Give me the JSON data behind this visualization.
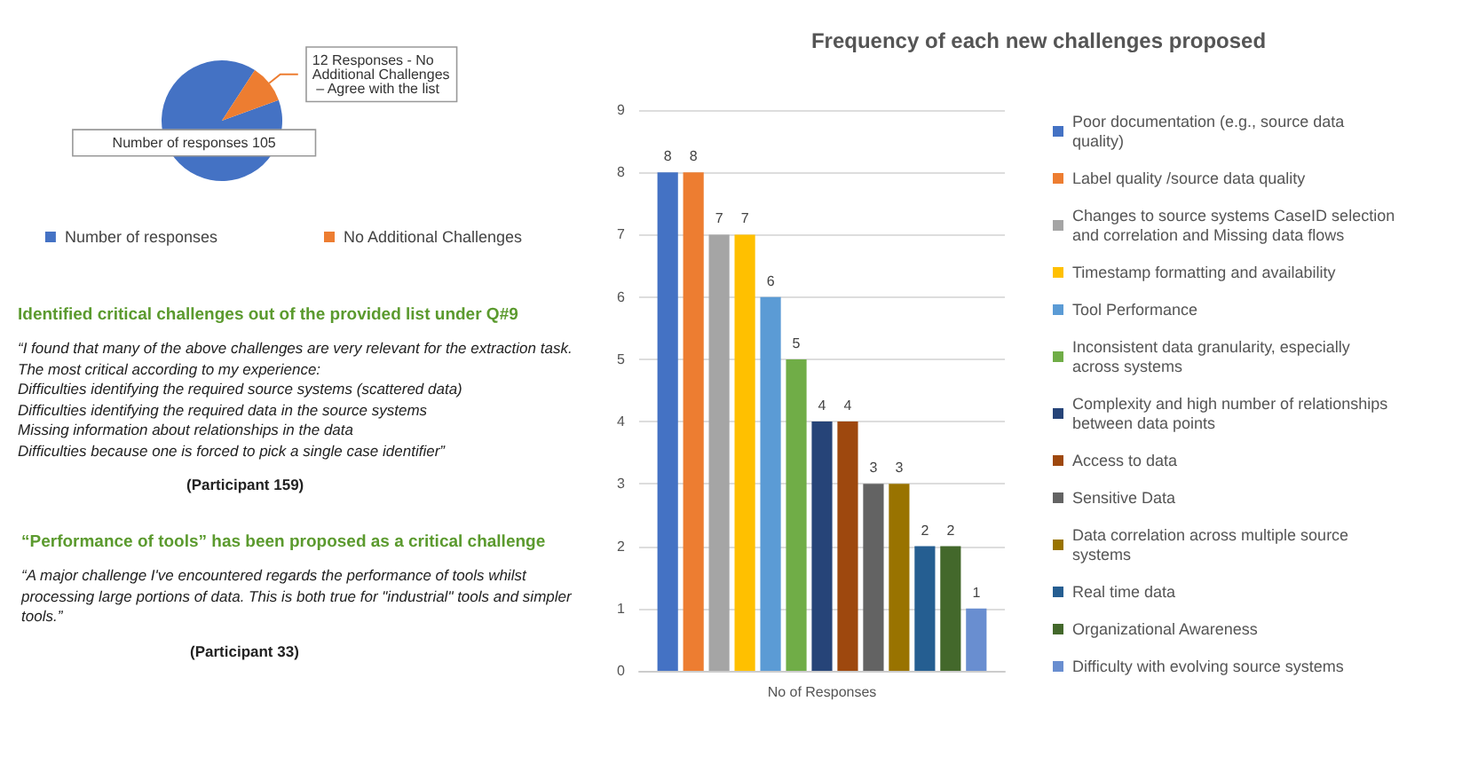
{
  "chart_data": [
    {
      "type": "pie",
      "categories": [
        "Number of responses",
        "No Additional Challenges"
      ],
      "values": [
        105,
        12
      ],
      "colors": [
        "#4472c4",
        "#ed7d31"
      ],
      "value_labels": [
        "Number of responses 105",
        "12 Responses - No Additional Challenges – Agree with the list"
      ],
      "legend": "bottom"
    },
    {
      "type": "other",
      "title": "Identified critical challenges out of the provided list under Q#9",
      "annotations": [
        "“I found that many of the above challenges are very relevant for the extraction task.",
        "The most critical according to my experience:",
        "Difficulties identifying the required source systems (scattered data)",
        "Difficulties identifying the required data in the source systems",
        "Missing information about relationships in the data",
        "Difficulties because one is forced to pick a single case identifier”",
        "(Participant 159)"
      ]
    },
    {
      "type": "other",
      "title": "“Performance of tools” has been proposed as a critical challenge",
      "annotations": [
        "“A major challenge I've encountered regards the performance of tools whilst processing large portions of data. This is both true for \"industrial\" tools and simpler tools.”",
        "(Participant 33)"
      ]
    },
    {
      "type": "bar",
      "title": "Frequency of each new challenges proposed",
      "categories": [
        "No of Responses"
      ],
      "series": [
        {
          "name": "Poor documentation (e.g., source data quality)",
          "color": "#4472c4",
          "values": [
            8
          ]
        },
        {
          "name": "Label quality /source data quality",
          "color": "#ed7d31",
          "values": [
            8
          ]
        },
        {
          "name": "Changes to source systems CaseID selection and correlation and Missing data flows",
          "color": "#a5a5a5",
          "values": [
            7
          ]
        },
        {
          "name": "Timestamp formatting and availability",
          "color": "#ffc000",
          "values": [
            7
          ]
        },
        {
          "name": "Tool Performance",
          "color": "#5b9bd5",
          "values": [
            6
          ]
        },
        {
          "name": "Inconsistent data granularity, especially across systems",
          "color": "#70ad47",
          "values": [
            5
          ]
        },
        {
          "name": "Complexity and high number of relationships between data points",
          "color": "#264478",
          "values": [
            4
          ]
        },
        {
          "name": "Access to data",
          "color": "#9e480e",
          "values": [
            4
          ]
        },
        {
          "name": "Sensitive Data",
          "color": "#636363",
          "values": [
            3
          ]
        },
        {
          "name": "Data correlation across multiple source systems",
          "color": "#997300",
          "values": [
            3
          ]
        },
        {
          "name": "Real time data",
          "color": "#255e91",
          "values": [
            2
          ]
        },
        {
          "name": "Organizational Awareness",
          "color": "#43682b",
          "values": [
            2
          ]
        },
        {
          "name": "Difficulty with evolving source systems",
          "color": "#698ed0",
          "values": [
            1
          ]
        }
      ],
      "ylim": [
        0,
        9
      ],
      "yticks": [
        0,
        1,
        2,
        3,
        4,
        5,
        6,
        7,
        8,
        9
      ],
      "grid": "y",
      "data_labels": true,
      "legend": "right"
    }
  ]
}
